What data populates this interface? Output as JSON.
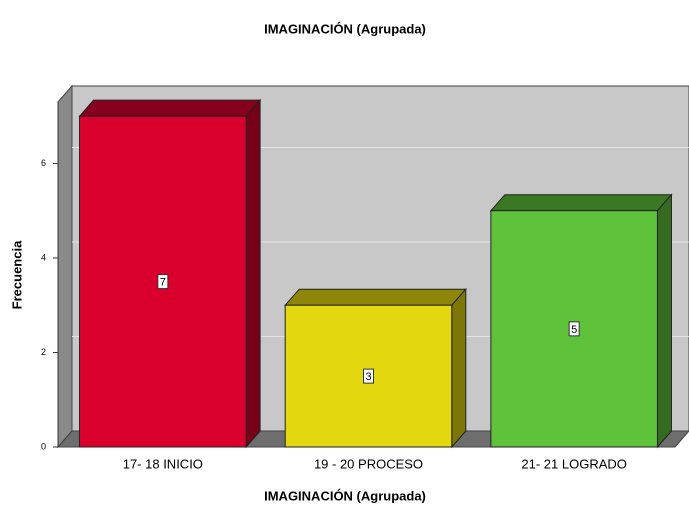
{
  "chart_data": {
    "type": "bar",
    "title": "IMAGINACIÓN (Agrupada)",
    "x_label": "IMAGINACIÓN (Agrupada)",
    "y_label": "Frecuencia",
    "categories": [
      "17- 18 INICIO",
      "19 - 20 PROCESO",
      "21- 21 LOGRADO"
    ],
    "values": [
      7,
      3,
      5
    ],
    "colors": [
      "#d9002e",
      "#e3d80f",
      "#5ec23a"
    ],
    "ylim": [
      0,
      7.3
    ],
    "yticks": [
      0,
      2,
      4,
      6
    ],
    "grid": true
  }
}
